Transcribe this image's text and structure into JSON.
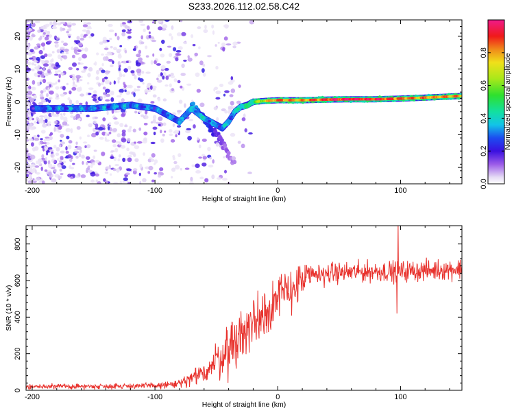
{
  "title": "S233.2026.112.02.58.C42",
  "colors": {
    "snr_line": "#e8322d",
    "frame": "#000000",
    "background": "#ffffff"
  },
  "chart_data": [
    {
      "type": "heatmap",
      "name": "spectrogram",
      "xlabel": "Height of straight line (km)",
      "ylabel": "Frequency (Hz)",
      "xlim": [
        -205,
        150
      ],
      "ylim": [
        -25,
        25
      ],
      "xticks": [
        -200,
        -100,
        0,
        100
      ],
      "xtick_labels": [
        "-200",
        "-100",
        "0",
        "100"
      ],
      "yticks": [
        -20,
        -10,
        0,
        10,
        20
      ],
      "ytick_labels": [
        "-20",
        "-10",
        "0",
        "10",
        "20"
      ],
      "colorbar": {
        "label": "Normalized spectral amplitude",
        "range": [
          0,
          1
        ],
        "ticks": [
          0.0,
          0.2,
          0.4,
          0.6,
          0.8
        ],
        "tick_labels": [
          "0.0",
          "0.2",
          "0.4",
          "0.6",
          "0.8"
        ],
        "colormap": "rainbow (white-lavender to magenta)"
      },
      "ridge": {
        "description": "Main frequency track vs height",
        "x": [
          -200,
          -180,
          -150,
          -120,
          -100,
          -90,
          -80,
          -70,
          -60,
          -50,
          -45,
          -40,
          -35,
          -30,
          -25,
          -20,
          -10,
          0,
          20,
          40,
          60,
          80,
          100,
          120,
          150
        ],
        "y": [
          -2,
          -2,
          -2,
          -1,
          -2,
          -4,
          -6,
          -2,
          -5,
          -7,
          -8,
          -6,
          -3,
          -1.5,
          -1,
          0,
          0.3,
          0.5,
          0.5,
          0.7,
          0.8,
          0.8,
          1.0,
          1.3,
          1.8
        ],
        "amplitude": [
          0.25,
          0.3,
          0.3,
          0.3,
          0.3,
          0.3,
          0.3,
          0.35,
          0.35,
          0.3,
          0.3,
          0.35,
          0.35,
          0.4,
          0.45,
          0.5,
          0.7,
          0.85,
          0.8,
          0.9,
          0.95,
          0.9,
          0.85,
          0.8,
          0.8
        ]
      },
      "branch": {
        "description": "Secondary descending branch",
        "x": [
          -70,
          -60,
          -55,
          -50,
          -45,
          -40,
          -35
        ],
        "y": [
          -1,
          -5,
          -8,
          -10,
          -13,
          -16,
          -19
        ],
        "amplitude": [
          0.3,
          0.25,
          0.2,
          0.15,
          0.1,
          0.08,
          0.05
        ]
      },
      "noise": {
        "description": "Scattered low-amplitude speckle at low heights",
        "x_range": [
          -205,
          -20
        ],
        "density": "high below -100 km, decreasing toward -20 km"
      }
    },
    {
      "type": "line",
      "name": "snr",
      "xlabel": "Height of straight line (km)",
      "ylabel": "SNR (10 * v/v)",
      "xlim": [
        -205,
        150
      ],
      "ylim": [
        0,
        900
      ],
      "xticks": [
        -200,
        -100,
        0,
        100
      ],
      "xtick_labels": [
        "-200",
        "-100",
        "0",
        "100"
      ],
      "yticks": [
        0,
        200,
        400,
        600,
        800
      ],
      "ytick_labels": [
        "0",
        "200",
        "400",
        "600",
        "800"
      ],
      "trend": {
        "x": [
          -205,
          -150,
          -100,
          -80,
          -70,
          -60,
          -50,
          -40,
          -30,
          -20,
          -10,
          0,
          10,
          20,
          30,
          40,
          60,
          80,
          100,
          120,
          150
        ],
        "y": [
          20,
          22,
          25,
          35,
          60,
          100,
          160,
          230,
          300,
          370,
          440,
          500,
          550,
          600,
          630,
          640,
          645,
          650,
          650,
          655,
          665
        ]
      },
      "noise_amplitude": {
        "x": [
          -205,
          -100,
          -80,
          -60,
          -40,
          -20,
          0,
          20,
          40,
          100,
          150
        ],
        "y": [
          8,
          10,
          18,
          40,
          90,
          110,
          90,
          60,
          35,
          35,
          35
        ]
      },
      "spikes": [
        {
          "x": 98,
          "y": 900
        },
        {
          "x": 97,
          "y": 420
        }
      ]
    }
  ],
  "labels": {
    "spectrogram_xlabel": "Height of straight line (km)",
    "spectrogram_ylabel": "Frequency (Hz)",
    "colorbar_label": "Normalized spectral amplitude",
    "snr_xlabel": "Height of straight line (km)",
    "snr_ylabel": "SNR (10 * v/v)"
  }
}
